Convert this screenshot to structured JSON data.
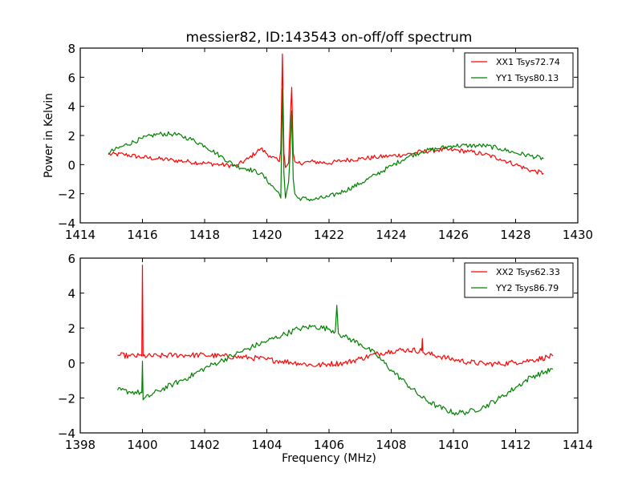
{
  "chart_data": [
    {
      "type": "line",
      "title": "messier82, ID:143543 on-off/off spectrum",
      "xlabel": "",
      "ylabel": "Power in Kelvin",
      "xlim": [
        1414,
        1430
      ],
      "ylim": [
        -4,
        8
      ],
      "xticks": [
        1414,
        1416,
        1418,
        1420,
        1422,
        1424,
        1426,
        1428,
        1430
      ],
      "yticks": [
        -4,
        -2,
        0,
        2,
        4,
        6,
        8
      ],
      "xtick_labels": [
        "1414",
        "1416",
        "1418",
        "1420",
        "1422",
        "1424",
        "1426",
        "1428",
        "1430"
      ],
      "ytick_labels": [
        "−4",
        "−2",
        "0",
        "2",
        "4",
        "6",
        "8"
      ],
      "grid": false,
      "legend_position": "top-right",
      "series": [
        {
          "name": "XX1 Tsys72.74",
          "color": "#ff0000",
          "x": [
            1414.9,
            1415.4,
            1416.0,
            1416.5,
            1417.0,
            1417.5,
            1418.0,
            1418.5,
            1419.0,
            1419.4,
            1419.8,
            1420.1,
            1420.4,
            1420.45,
            1420.5,
            1420.55,
            1420.6,
            1420.7,
            1420.75,
            1420.8,
            1420.85,
            1420.9,
            1421.0,
            1421.5,
            1422.0,
            1422.5,
            1423.0,
            1423.5,
            1424.0,
            1424.5,
            1425.0,
            1425.5,
            1426.0,
            1426.5,
            1427.0,
            1427.5,
            1428.0,
            1428.5,
            1428.9
          ],
          "y": [
            0.7,
            0.7,
            0.5,
            0.4,
            0.3,
            0.2,
            0.1,
            0.0,
            -0.1,
            0.4,
            1.1,
            0.6,
            0.2,
            1.0,
            7.6,
            0.8,
            -0.2,
            0.1,
            3.0,
            5.3,
            0.8,
            0.2,
            0.1,
            0.2,
            0.1,
            0.3,
            0.4,
            0.5,
            0.6,
            0.7,
            0.9,
            1.0,
            1.0,
            0.9,
            0.7,
            0.4,
            0.0,
            -0.4,
            -0.6
          ]
        },
        {
          "name": "YY1 Tsys80.13",
          "color": "#008000",
          "x": [
            1414.9,
            1415.4,
            1416.0,
            1416.5,
            1417.0,
            1417.5,
            1418.0,
            1418.5,
            1419.0,
            1419.4,
            1419.8,
            1420.1,
            1420.4,
            1420.45,
            1420.5,
            1420.55,
            1420.6,
            1420.7,
            1420.75,
            1420.8,
            1420.85,
            1420.9,
            1421.0,
            1421.5,
            1422.0,
            1422.5,
            1423.0,
            1423.5,
            1424.0,
            1424.5,
            1425.0,
            1425.5,
            1426.0,
            1426.5,
            1427.0,
            1427.5,
            1428.0,
            1428.5,
            1428.9
          ],
          "y": [
            0.8,
            1.3,
            1.8,
            2.1,
            2.1,
            1.8,
            1.3,
            0.6,
            -0.1,
            -0.3,
            -0.6,
            -1.3,
            -2.0,
            -2.3,
            5.2,
            -0.6,
            -2.3,
            -1.2,
            0.8,
            3.7,
            -1.0,
            -2.0,
            -2.3,
            -2.4,
            -2.2,
            -1.8,
            -1.3,
            -0.7,
            -0.1,
            0.5,
            0.9,
            1.1,
            1.3,
            1.3,
            1.3,
            1.1,
            0.8,
            0.6,
            0.4
          ]
        }
      ]
    },
    {
      "type": "line",
      "title": "",
      "xlabel": "Frequency (MHz)",
      "ylabel": "",
      "xlim": [
        1398,
        1414
      ],
      "ylim": [
        -4,
        6
      ],
      "xticks": [
        1398,
        1400,
        1402,
        1404,
        1406,
        1408,
        1410,
        1412,
        1414
      ],
      "yticks": [
        -4,
        -2,
        0,
        2,
        4,
        6
      ],
      "xtick_labels": [
        "1398",
        "1400",
        "1402",
        "1404",
        "1406",
        "1408",
        "1410",
        "1412",
        "1414"
      ],
      "ytick_labels": [
        "−4",
        "−2",
        "0",
        "2",
        "4",
        "6"
      ],
      "grid": false,
      "legend_position": "top-right",
      "series": [
        {
          "name": "XX2 Tsys62.33",
          "color": "#ff0000",
          "x": [
            1399.2,
            1399.6,
            1399.98,
            1400.0,
            1400.02,
            1400.5,
            1401.0,
            1401.5,
            1402.0,
            1402.5,
            1403.0,
            1403.5,
            1404.0,
            1404.5,
            1405.0,
            1405.6,
            1406.0,
            1406.5,
            1407.0,
            1407.5,
            1408.0,
            1408.5,
            1408.98,
            1409.0,
            1409.02,
            1409.5,
            1410.0,
            1410.5,
            1411.0,
            1411.5,
            1412.0,
            1412.5,
            1413.2
          ],
          "y": [
            0.45,
            0.4,
            0.4,
            5.6,
            0.4,
            0.4,
            0.45,
            0.45,
            0.45,
            0.4,
            0.35,
            0.3,
            0.2,
            0.1,
            0.0,
            -0.15,
            -0.05,
            0.0,
            0.25,
            0.5,
            0.7,
            0.75,
            0.7,
            1.4,
            0.6,
            0.4,
            0.2,
            0.05,
            -0.05,
            -0.05,
            0.05,
            0.15,
            0.4
          ]
        },
        {
          "name": "YY2 Tsys86.79",
          "color": "#008000",
          "x": [
            1399.2,
            1399.6,
            1399.98,
            1400.0,
            1400.02,
            1400.5,
            1401.0,
            1401.5,
            1402.0,
            1402.5,
            1403.0,
            1403.5,
            1404.0,
            1404.5,
            1405.0,
            1405.5,
            1406.0,
            1406.2,
            1406.25,
            1406.3,
            1406.5,
            1407.0,
            1407.5,
            1408.0,
            1408.5,
            1409.0,
            1409.5,
            1410.0,
            1410.5,
            1411.0,
            1411.5,
            1412.0,
            1412.5,
            1413.2
          ],
          "y": [
            -1.55,
            -1.65,
            -1.7,
            0.1,
            -2.1,
            -1.6,
            -1.2,
            -0.8,
            -0.3,
            0.1,
            0.5,
            0.9,
            1.25,
            1.6,
            1.95,
            2.1,
            1.95,
            1.8,
            3.3,
            1.7,
            1.5,
            1.1,
            0.5,
            -0.4,
            -1.2,
            -2.0,
            -2.5,
            -2.85,
            -2.8,
            -2.5,
            -2.0,
            -1.4,
            -0.8,
            -0.35
          ]
        }
      ]
    }
  ]
}
